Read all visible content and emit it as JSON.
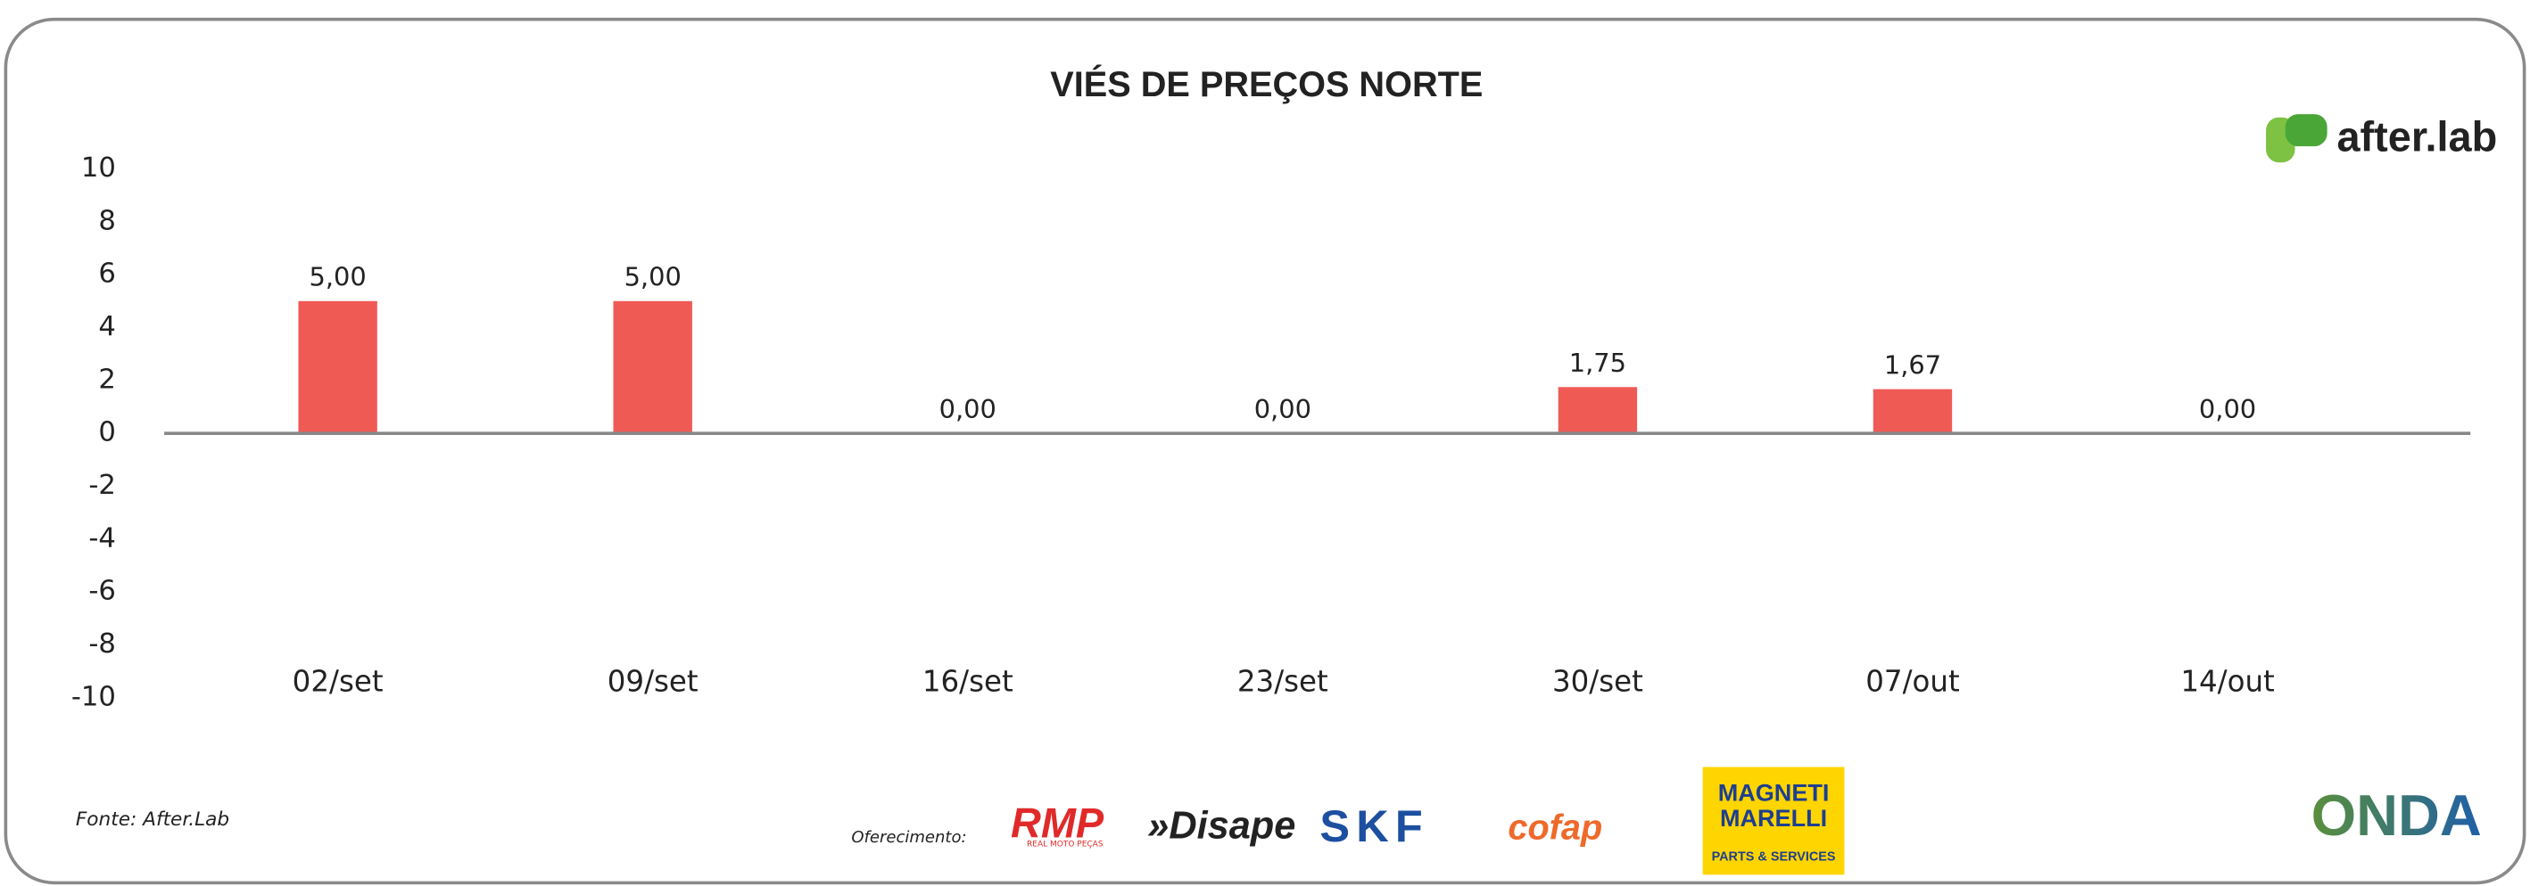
{
  "chart_data": {
    "type": "bar",
    "title": "VIÉS DE PREÇOS NORTE",
    "categories": [
      "02/set",
      "09/set",
      "16/set",
      "23/set",
      "30/set",
      "07/out",
      "14/out"
    ],
    "values": [
      5,
      5,
      0,
      0,
      1.75,
      1.67,
      0
    ],
    "value_labels": [
      "5,00",
      "5,00",
      "0,00",
      "0,00",
      "1,75",
      "1,67",
      "0,00"
    ],
    "color": "#f05a55",
    "ylim": [
      -10,
      10
    ],
    "yticks": [
      -10,
      -8,
      -6,
      -4,
      -2,
      0,
      2,
      4,
      6,
      8,
      10
    ],
    "grid": false
  },
  "page": {
    "source": "Fonte: After.Lab",
    "sponsor_label": "Oferecimento:",
    "logos": [
      "after.lab",
      "RMP",
      "REAL MOTO PEÇAS",
      "»Disape",
      "SKF",
      "cofap",
      "MAGNETI",
      "MARELLI",
      "PARTS & SERVICES",
      "ONDA"
    ]
  }
}
